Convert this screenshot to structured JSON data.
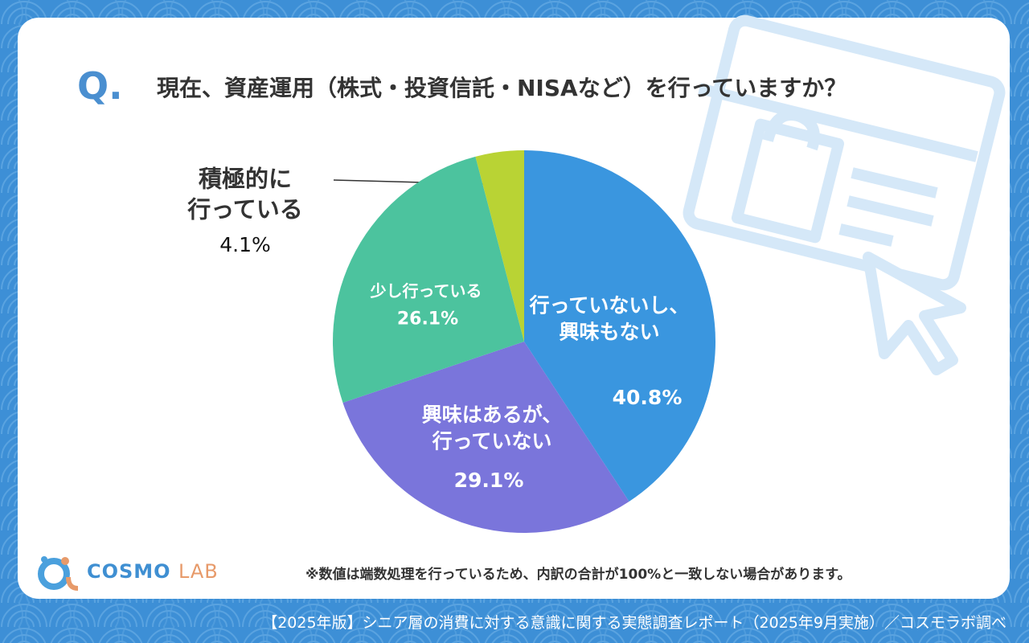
{
  "chart_data": {
    "type": "pie",
    "question_mark": "Q.",
    "title": "現在、資産運用（株式・投資信託・NISAなど）を行っていますか？",
    "categories": [
      "行っていないし、\n興味もない",
      "興味はあるが、\n行っていない",
      "少し行っている",
      "積極的に\n行っている"
    ],
    "values": [
      40.8,
      29.1,
      26.1,
      4.1
    ],
    "value_labels": [
      "40.8%",
      "29.1%",
      "26.1%",
      "4.1%"
    ],
    "colors": [
      "#3a96df",
      "#7a75db",
      "#4cc39e",
      "#b9d334"
    ],
    "note": "※数値は端数処理を行っているため、内訳の合計が100%と一致しない場合があります。",
    "logo": {
      "main": "COSMO",
      "sub": "LAB"
    },
    "footer": "【2025年版】シニア層の消費に対する意識に関する実態調査レポート（2025年9月実施）／コスモラボ調べ"
  }
}
